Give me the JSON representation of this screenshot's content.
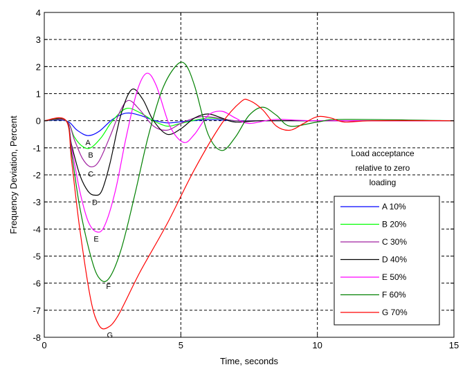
{
  "chart_data": {
    "type": "line",
    "title": "",
    "xlabel": "Time, seconds",
    "ylabel": "Frequency Deviation, Percent",
    "xlim": [
      0,
      15
    ],
    "ylim": [
      -8,
      4
    ],
    "xticks": [
      "0",
      "5",
      "10",
      "15"
    ],
    "yticks": [
      "-8",
      "-7",
      "-6",
      "-5",
      "-4",
      "-3",
      "-2",
      "-1",
      "0",
      "1",
      "2",
      "3",
      "4"
    ],
    "grid": "dashed",
    "annotation": [
      "Load acceptance",
      "relative to zero",
      "loading"
    ],
    "legend_position": "lower-right",
    "series": [
      {
        "name": "A 10%",
        "curve_label": "A",
        "color": "#0000ff",
        "x": [
          0,
          0.8,
          1.2,
          1.6,
          2.0,
          2.5,
          3.0,
          3.5,
          4.0,
          4.5,
          5.0,
          6.0,
          7.0,
          8.0,
          10.0,
          15.0
        ],
        "y": [
          0,
          0,
          -0.35,
          -0.55,
          -0.4,
          0.05,
          0.28,
          0.2,
          0.02,
          -0.08,
          -0.04,
          0.04,
          0.0,
          0.0,
          0.0,
          0.0
        ]
      },
      {
        "name": "B 20%",
        "curve_label": "B",
        "color": "#00ff00",
        "x": [
          0,
          0.8,
          1.1,
          1.4,
          1.7,
          2.1,
          2.5,
          3.0,
          3.5,
          4.0,
          4.5,
          5.0,
          6.0,
          7.0,
          8.0,
          10.0,
          15.0
        ],
        "y": [
          0,
          0,
          -0.6,
          -0.95,
          -1.0,
          -0.6,
          0.0,
          0.45,
          0.3,
          0.0,
          -0.2,
          -0.1,
          0.1,
          0.0,
          0.0,
          0.0,
          0.0
        ]
      },
      {
        "name": "C 30%",
        "curve_label": "C",
        "color": "#a020a0",
        "x": [
          0,
          0.8,
          1.1,
          1.4,
          1.7,
          2.0,
          2.4,
          2.8,
          3.1,
          3.5,
          4.0,
          4.5,
          5.0,
          5.5,
          6.0,
          7.0,
          8.0,
          10.0,
          15.0
        ],
        "y": [
          0,
          0,
          -0.7,
          -1.4,
          -1.7,
          -1.5,
          -0.6,
          0.4,
          0.75,
          0.4,
          -0.2,
          -0.35,
          -0.1,
          0.1,
          0.15,
          0.0,
          0.0,
          0.0,
          0.0
        ]
      },
      {
        "name": "D 40%",
        "curve_label": "D",
        "color": "#000000",
        "x": [
          0,
          0.8,
          1.0,
          1.3,
          1.6,
          1.85,
          2.1,
          2.4,
          2.8,
          3.2,
          3.6,
          4.0,
          4.5,
          5.0,
          5.5,
          6.0,
          6.5,
          7.0,
          8.0,
          10.0,
          15.0
        ],
        "y": [
          0,
          0,
          -0.9,
          -2.0,
          -2.6,
          -2.75,
          -2.6,
          -1.6,
          0.2,
          1.15,
          0.8,
          0.0,
          -0.5,
          -0.3,
          0.1,
          0.25,
          0.1,
          -0.05,
          0.0,
          0.0,
          0.0
        ]
      },
      {
        "name": "E 50%",
        "curve_label": "E",
        "color": "#ff00ff",
        "x": [
          0,
          0.8,
          1.0,
          1.3,
          1.6,
          1.9,
          2.2,
          2.6,
          3.0,
          3.4,
          3.75,
          4.1,
          4.6,
          5.1,
          5.5,
          6.0,
          6.5,
          7.0,
          7.5,
          8.5,
          10.0,
          15.0
        ],
        "y": [
          0,
          0,
          -1.0,
          -2.6,
          -3.7,
          -4.1,
          -3.9,
          -2.6,
          -0.6,
          1.1,
          1.75,
          1.3,
          -0.2,
          -0.8,
          -0.5,
          0.2,
          0.35,
          0.1,
          -0.1,
          0.05,
          0.0,
          0.0
        ]
      },
      {
        "name": "F 60%",
        "curve_label": "F",
        "color": "#008000",
        "x": [
          0,
          0.8,
          1.0,
          1.3,
          1.7,
          2.0,
          2.35,
          2.8,
          3.3,
          3.8,
          4.3,
          4.8,
          5.15,
          5.5,
          6.0,
          6.5,
          7.0,
          7.5,
          8.0,
          8.5,
          9.0,
          10.0,
          11.0,
          15.0
        ],
        "y": [
          0,
          0,
          -1.2,
          -3.2,
          -5.0,
          -5.8,
          -5.85,
          -4.8,
          -2.8,
          -0.6,
          1.1,
          2.0,
          2.1,
          1.3,
          -0.5,
          -1.1,
          -0.6,
          0.2,
          0.5,
          0.2,
          -0.2,
          -0.05,
          0.05,
          0.0
        ]
      },
      {
        "name": "G 70%",
        "curve_label": "G",
        "color": "#ff0000",
        "x": [
          0,
          0.8,
          1.0,
          1.3,
          1.7,
          2.0,
          2.3,
          2.7,
          3.5,
          4.5,
          5.5,
          6.5,
          7.2,
          7.5,
          8.0,
          8.5,
          9.0,
          9.5,
          10.0,
          10.5,
          11.0,
          12.0,
          15.0
        ],
        "y": [
          0,
          0,
          -1.5,
          -4.0,
          -6.6,
          -7.55,
          -7.65,
          -7.2,
          -5.6,
          -3.8,
          -1.8,
          -0.1,
          0.7,
          0.75,
          0.4,
          -0.2,
          -0.35,
          -0.1,
          0.15,
          0.1,
          -0.05,
          0.0,
          0.0
        ]
      }
    ]
  }
}
